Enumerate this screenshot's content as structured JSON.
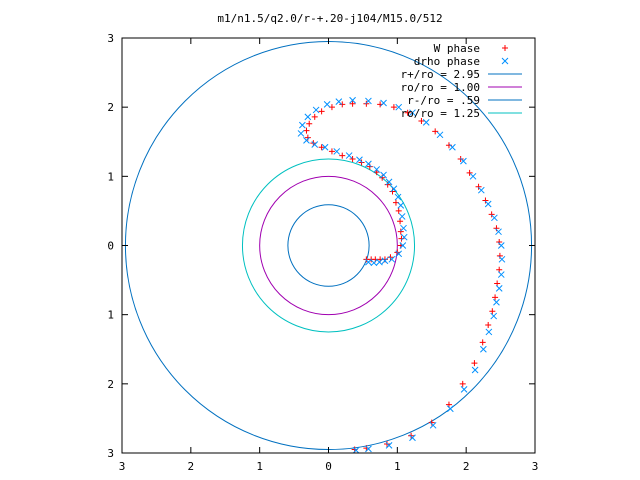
{
  "chart_data": {
    "type": "scatter",
    "title": "m1/n1.5/q2.0/r-+.20-j104/M15.0/512",
    "xlim": [
      -3,
      3
    ],
    "ylim": [
      -3,
      3
    ],
    "xticks": [
      -3,
      -2,
      -1,
      0,
      1,
      2,
      3
    ],
    "yticks": [
      -3,
      -2,
      -1,
      0,
      1,
      2,
      3
    ],
    "xtick_labels": [
      "3",
      "2",
      "1",
      "0",
      "1",
      "2",
      "3"
    ],
    "ytick_labels": [
      "3",
      "2",
      "1",
      "0",
      "1",
      "2",
      "3"
    ],
    "grid": false,
    "legend_position": "top-right",
    "series": [
      {
        "name": "W phase",
        "kind": "points",
        "marker": "+",
        "color": "#ff0000",
        "points": [
          [
            0.55,
            -0.2
          ],
          [
            0.62,
            -0.2
          ],
          [
            0.68,
            -0.2
          ],
          [
            0.75,
            -0.2
          ],
          [
            0.82,
            -0.2
          ],
          [
            0.9,
            -0.17
          ],
          [
            1.0,
            -0.1
          ],
          [
            1.05,
            0.0
          ],
          [
            1.06,
            0.1
          ],
          [
            1.05,
            0.2
          ],
          [
            1.04,
            0.35
          ],
          [
            1.02,
            0.5
          ],
          [
            0.98,
            0.62
          ],
          [
            0.93,
            0.78
          ],
          [
            0.86,
            0.88
          ],
          [
            0.78,
            0.98
          ],
          [
            0.7,
            1.06
          ],
          [
            0.6,
            1.14
          ],
          [
            0.48,
            1.2
          ],
          [
            0.35,
            1.25
          ],
          [
            0.2,
            1.3
          ],
          [
            0.05,
            1.36
          ],
          [
            -0.1,
            1.42
          ],
          [
            -0.22,
            1.48
          ],
          [
            -0.3,
            1.56
          ],
          [
            -0.32,
            1.66
          ],
          [
            -0.28,
            1.76
          ],
          [
            -0.2,
            1.86
          ],
          [
            -0.1,
            1.94
          ],
          [
            0.05,
            2.0
          ],
          [
            0.2,
            2.04
          ],
          [
            0.35,
            2.05
          ],
          [
            0.55,
            2.05
          ],
          [
            0.75,
            2.04
          ],
          [
            0.95,
            2.0
          ],
          [
            1.15,
            1.92
          ],
          [
            1.35,
            1.8
          ],
          [
            1.55,
            1.65
          ],
          [
            1.75,
            1.45
          ],
          [
            1.92,
            1.25
          ],
          [
            2.05,
            1.05
          ],
          [
            2.18,
            0.85
          ],
          [
            2.28,
            0.65
          ],
          [
            2.37,
            0.45
          ],
          [
            2.44,
            0.25
          ],
          [
            2.48,
            0.05
          ],
          [
            2.49,
            -0.15
          ],
          [
            2.48,
            -0.35
          ],
          [
            2.45,
            -0.55
          ],
          [
            2.42,
            -0.75
          ],
          [
            2.38,
            -0.95
          ],
          [
            2.32,
            -1.15
          ],
          [
            2.24,
            -1.4
          ],
          [
            2.12,
            -1.7
          ],
          [
            1.95,
            -2.0
          ],
          [
            1.75,
            -2.3
          ],
          [
            1.5,
            -2.56
          ],
          [
            1.2,
            -2.75
          ],
          [
            0.85,
            -2.87
          ],
          [
            0.55,
            -2.93
          ],
          [
            0.38,
            -2.95
          ]
        ]
      },
      {
        "name": "drho phase",
        "kind": "points",
        "marker": "x",
        "color": "#0090ff",
        "points": [
          [
            0.58,
            -0.24
          ],
          [
            0.66,
            -0.25
          ],
          [
            0.74,
            -0.24
          ],
          [
            0.82,
            -0.22
          ],
          [
            0.92,
            -0.2
          ],
          [
            1.02,
            -0.12
          ],
          [
            1.08,
            0.0
          ],
          [
            1.1,
            0.12
          ],
          [
            1.09,
            0.25
          ],
          [
            1.07,
            0.42
          ],
          [
            1.05,
            0.58
          ],
          [
            1.01,
            0.7
          ],
          [
            0.95,
            0.82
          ],
          [
            0.88,
            0.92
          ],
          [
            0.8,
            1.02
          ],
          [
            0.7,
            1.1
          ],
          [
            0.58,
            1.18
          ],
          [
            0.45,
            1.24
          ],
          [
            0.3,
            1.3
          ],
          [
            0.12,
            1.36
          ],
          [
            -0.05,
            1.42
          ],
          [
            -0.2,
            1.46
          ],
          [
            -0.32,
            1.52
          ],
          [
            -0.4,
            1.62
          ],
          [
            -0.38,
            1.74
          ],
          [
            -0.3,
            1.86
          ],
          [
            -0.18,
            1.96
          ],
          [
            -0.02,
            2.04
          ],
          [
            0.15,
            2.08
          ],
          [
            0.35,
            2.1
          ],
          [
            0.58,
            2.09
          ],
          [
            0.8,
            2.06
          ],
          [
            1.02,
            2.0
          ],
          [
            1.22,
            1.92
          ],
          [
            1.42,
            1.78
          ],
          [
            1.62,
            1.6
          ],
          [
            1.8,
            1.42
          ],
          [
            1.96,
            1.22
          ],
          [
            2.1,
            1.0
          ],
          [
            2.22,
            0.8
          ],
          [
            2.32,
            0.6
          ],
          [
            2.41,
            0.4
          ],
          [
            2.47,
            0.2
          ],
          [
            2.51,
            0.0
          ],
          [
            2.52,
            -0.2
          ],
          [
            2.51,
            -0.42
          ],
          [
            2.48,
            -0.62
          ],
          [
            2.44,
            -0.82
          ],
          [
            2.4,
            -1.02
          ],
          [
            2.33,
            -1.25
          ],
          [
            2.25,
            -1.5
          ],
          [
            2.13,
            -1.8
          ],
          [
            1.97,
            -2.08
          ],
          [
            1.77,
            -2.36
          ],
          [
            1.52,
            -2.6
          ],
          [
            1.22,
            -2.78
          ],
          [
            0.88,
            -2.89
          ],
          [
            0.58,
            -2.94
          ],
          [
            0.4,
            -2.96
          ]
        ]
      },
      {
        "name": "r+/ro = 2.95",
        "kind": "circle",
        "radius": 2.95,
        "color": "#0070c0"
      },
      {
        "name": "ro/ro = 1.00",
        "kind": "circle",
        "radius": 1.0,
        "color": "#a000b0"
      },
      {
        "name": "r-/ro = .59",
        "kind": "circle",
        "radius": 0.59,
        "color": "#0070c0"
      },
      {
        "name": "ro/ro = 1.25",
        "kind": "circle",
        "radius": 1.25,
        "color": "#00c0c0"
      }
    ]
  }
}
